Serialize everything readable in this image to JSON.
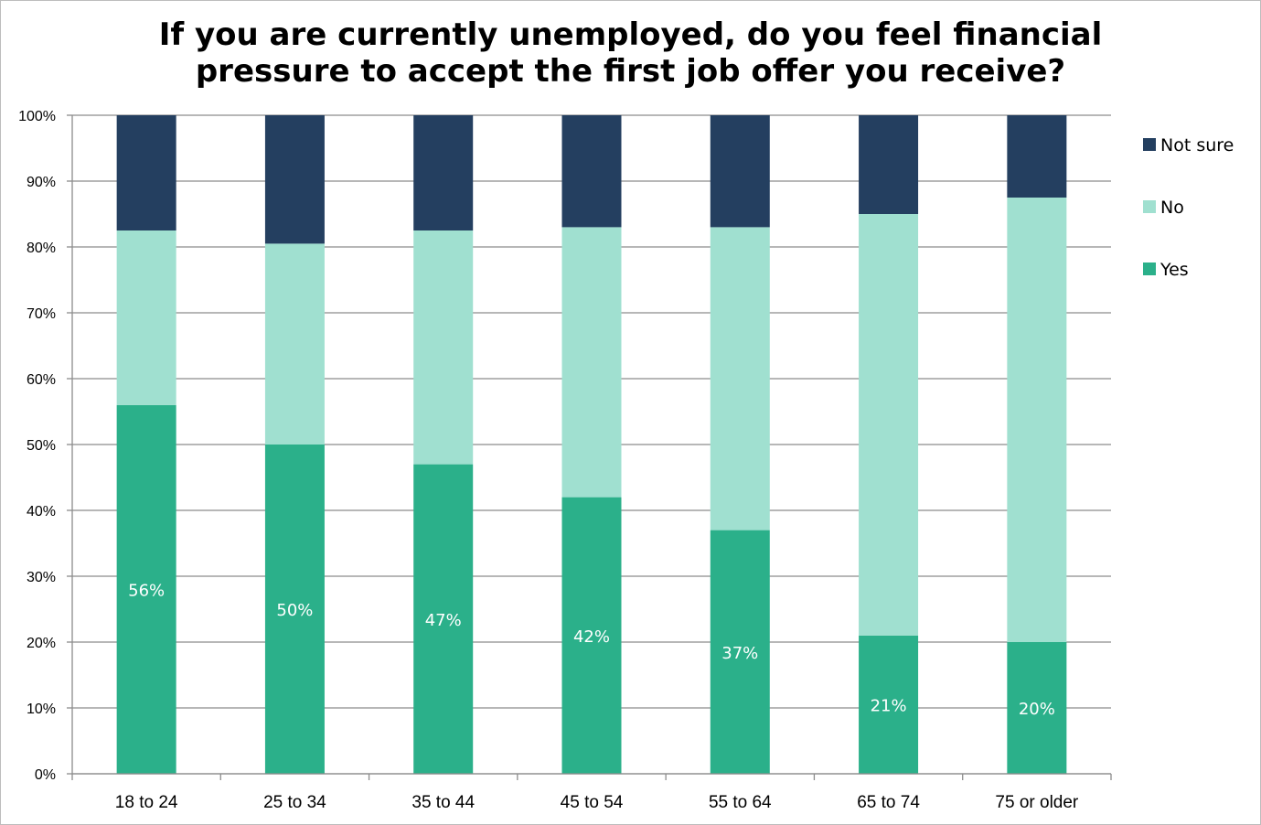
{
  "chart_data": {
    "type": "bar",
    "stacked": true,
    "title": "If you are currently unemployed, do you feel financial pressure to accept the first job offer you receive?",
    "categories": [
      "18 to 24",
      "25 to 34",
      "35 to 44",
      "45 to 54",
      "55 to 64",
      "65 to 74",
      "75 or older"
    ],
    "series": [
      {
        "name": "Yes",
        "color": "#2BB08A",
        "values": [
          56,
          50,
          47,
          42,
          37,
          21,
          20
        ],
        "labels": [
          "56%",
          "50%",
          "47%",
          "42%",
          "37%",
          "21%",
          "20%"
        ]
      },
      {
        "name": "No",
        "color": "#A0E0D0",
        "values": [
          26.5,
          30.5,
          35.5,
          41,
          46,
          64,
          67.5
        ]
      },
      {
        "name": "Not sure",
        "color": "#243F60",
        "values": [
          17.5,
          19.5,
          17.5,
          17,
          17,
          15,
          12.5
        ]
      }
    ],
    "ylim": [
      0,
      100
    ],
    "yticks": [
      "0%",
      "10%",
      "20%",
      "30%",
      "40%",
      "50%",
      "60%",
      "70%",
      "80%",
      "90%",
      "100%"
    ],
    "grid": true,
    "legend": "right",
    "legend_order": [
      "Not sure",
      "No",
      "Yes"
    ]
  }
}
